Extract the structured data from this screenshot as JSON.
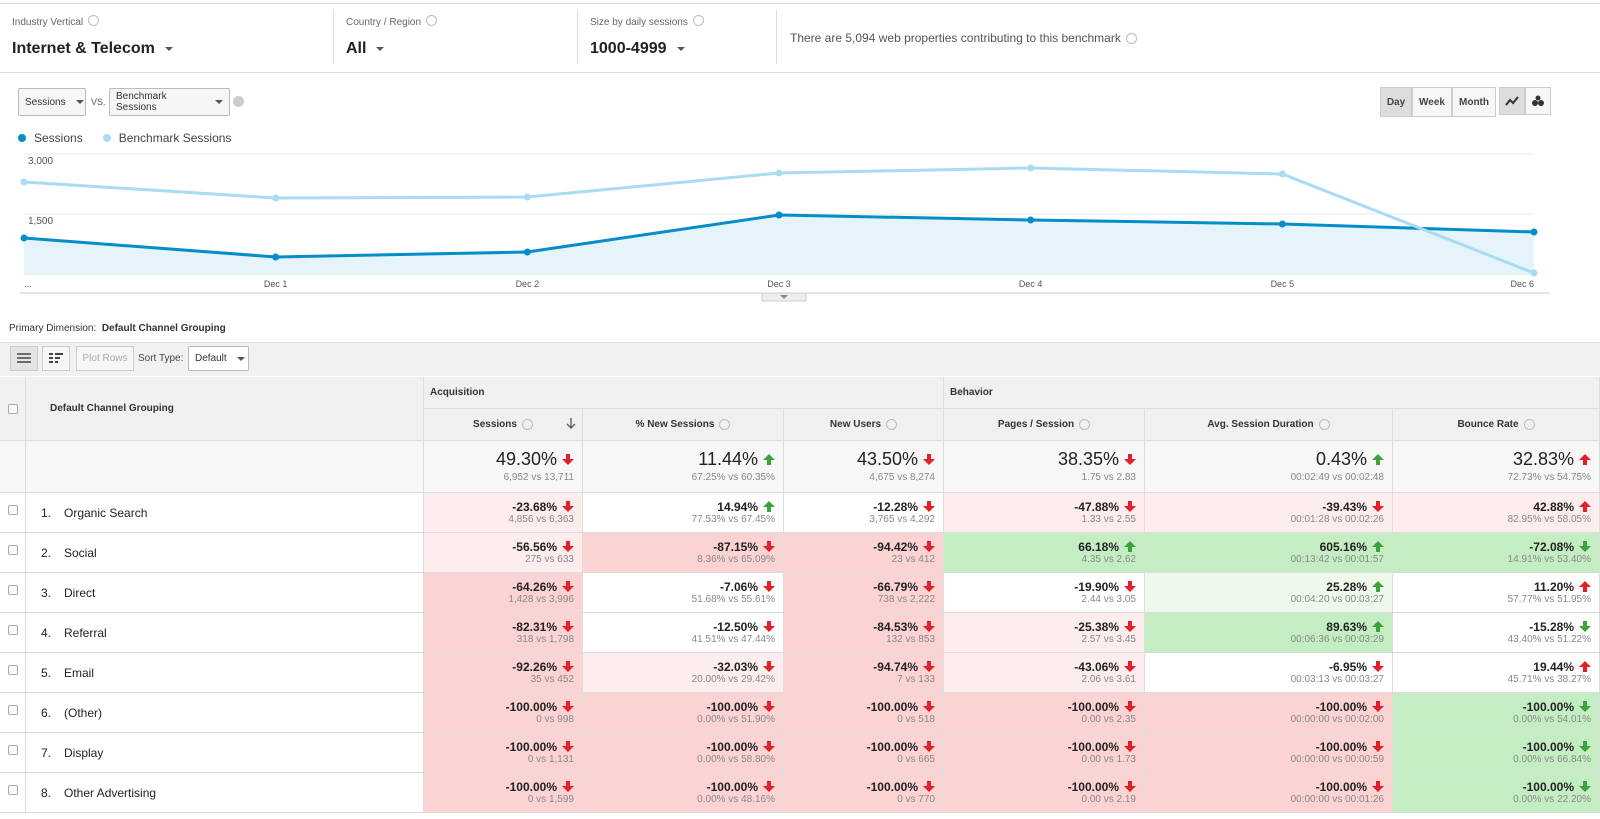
{
  "filters": [
    {
      "label": "Industry Vertical",
      "value": "Internet & Telecom"
    },
    {
      "label": "Country / Region",
      "value": "All"
    },
    {
      "label": "Size by daily sessions",
      "value": "1000-4999"
    }
  ],
  "benchmark_note": "There are 5,094 web properties contributing to this benchmark",
  "controls": {
    "metric": "Sessions",
    "vs": "VS.",
    "compare_metric": "Benchmark Sessions",
    "periods": [
      "Day",
      "Week",
      "Month"
    ],
    "active_period": "Day"
  },
  "chart_data": {
    "type": "line",
    "categories": [
      "...",
      "Dec 1",
      "Dec 2",
      "Dec 3",
      "Dec 4",
      "Dec 5",
      "Dec 6"
    ],
    "series": [
      {
        "name": "Sessions",
        "color": "#058dc7",
        "area": true,
        "values": [
          900,
          425,
          550,
          1475,
          1350,
          1250,
          1050
        ]
      },
      {
        "name": "Benchmark Sessions",
        "color": "#a9dcf2",
        "area": false,
        "values": [
          2300,
          1900,
          1925,
          2525,
          2650,
          2500,
          25
        ]
      }
    ],
    "ylim": [
      0,
      3000
    ],
    "yticks": [
      {
        "value": 1500,
        "label": "1,500"
      },
      {
        "value": 3000,
        "label": "3,000"
      }
    ],
    "grid": true
  },
  "primary_dimension": {
    "label": "Primary Dimension:",
    "value": "Default Channel Grouping"
  },
  "toolbar": {
    "plot_rows": "Plot Rows",
    "sort_label": "Sort Type:",
    "sort_value": "Default"
  },
  "table": {
    "dimension_header": "Default Channel Grouping",
    "groups": [
      {
        "name": "Acquisition",
        "columns": [
          "Sessions",
          "% New Sessions",
          "New Users"
        ]
      },
      {
        "name": "Behavior",
        "columns": [
          "Pages / Session",
          "Avg. Session Duration",
          "Bounce Rate"
        ]
      }
    ],
    "lower_is_better": [
      false,
      false,
      false,
      false,
      false,
      true
    ],
    "sorted_column": 0,
    "totals": [
      {
        "value": "49.30%",
        "compare": "6,952 vs 13,711",
        "arrow": "down"
      },
      {
        "value": "11.44%",
        "compare": "67.25% vs 60.35%",
        "arrow": "up"
      },
      {
        "value": "43.50%",
        "compare": "4,675 vs 8,274",
        "arrow": "down"
      },
      {
        "value": "38.35%",
        "compare": "1.75 vs 2.83",
        "arrow": "down"
      },
      {
        "value": "0.43%",
        "compare": "00:02:49 vs 00:02:48",
        "arrow": "up"
      },
      {
        "value": "32.83%",
        "compare": "72.73% vs 54.75%",
        "arrow": "up"
      }
    ],
    "rows": [
      {
        "index": "1.",
        "name": "Organic Search",
        "cells": [
          [
            "-23.68%",
            "4,856 vs 6,363"
          ],
          [
            "14.94%",
            "77.53% vs 67.45%"
          ],
          [
            "-12.28%",
            "3,765 vs 4,292"
          ],
          [
            "-47.88%",
            "1.33 vs 2.55"
          ],
          [
            "-39.43%",
            "00:01:28 vs 00:02:26"
          ],
          [
            "42.88%",
            "82.95% vs 58.05%"
          ]
        ]
      },
      {
        "index": "2.",
        "name": "Social",
        "cells": [
          [
            "-56.56%",
            "275 vs 633"
          ],
          [
            "-87.15%",
            "8.36% vs 65.09%"
          ],
          [
            "-94.42%",
            "23 vs 412"
          ],
          [
            "66.18%",
            "4.35 vs 2.62"
          ],
          [
            "605.16%",
            "00:13:42 vs 00:01:57"
          ],
          [
            "-72.08%",
            "14.91% vs 53.40%"
          ]
        ]
      },
      {
        "index": "3.",
        "name": "Direct",
        "cells": [
          [
            "-64.26%",
            "1,428 vs 3,996"
          ],
          [
            "-7.06%",
            "51.68% vs 55.61%"
          ],
          [
            "-66.79%",
            "738 vs 2,222"
          ],
          [
            "-19.90%",
            "2.44 vs 3.05"
          ],
          [
            "25.28%",
            "00:04:20 vs 00:03:27"
          ],
          [
            "11.20%",
            "57.77% vs 51.95%"
          ]
        ]
      },
      {
        "index": "4.",
        "name": "Referral",
        "cells": [
          [
            "-82.31%",
            "318 vs 1,798"
          ],
          [
            "-12.50%",
            "41.51% vs 47.44%"
          ],
          [
            "-84.53%",
            "132 vs 853"
          ],
          [
            "-25.38%",
            "2.57 vs 3.45"
          ],
          [
            "89.63%",
            "00:06:36 vs 00:03:29"
          ],
          [
            "-15.28%",
            "43.40% vs 51.22%"
          ]
        ]
      },
      {
        "index": "5.",
        "name": "Email",
        "cells": [
          [
            "-92.26%",
            "35 vs 452"
          ],
          [
            "-32.03%",
            "20.00% vs 29.42%"
          ],
          [
            "-94.74%",
            "7 vs 133"
          ],
          [
            "-43.06%",
            "2.06 vs 3.61"
          ],
          [
            "-6.95%",
            "00:03:13 vs 00:03:27"
          ],
          [
            "19.44%",
            "45.71% vs 38.27%"
          ]
        ]
      },
      {
        "index": "6.",
        "name": "(Other)",
        "cells": [
          [
            "-100.00%",
            "0 vs 998"
          ],
          [
            "-100.00%",
            "0.00% vs 51.90%"
          ],
          [
            "-100.00%",
            "0 vs 518"
          ],
          [
            "-100.00%",
            "0.00 vs 2.35"
          ],
          [
            "-100.00%",
            "00:00:00 vs 00:02:00"
          ],
          [
            "-100.00%",
            "0.00% vs 54.01%"
          ]
        ]
      },
      {
        "index": "7.",
        "name": "Display",
        "cells": [
          [
            "-100.00%",
            "0 vs 1,131"
          ],
          [
            "-100.00%",
            "0.00% vs 58.80%"
          ],
          [
            "-100.00%",
            "0 vs 665"
          ],
          [
            "-100.00%",
            "0.00 vs 1.73"
          ],
          [
            "-100.00%",
            "00:00:00 vs 00:00:59"
          ],
          [
            "-100.00%",
            "0.00% vs 66.84%"
          ]
        ]
      },
      {
        "index": "8.",
        "name": "Other Advertising",
        "cells": [
          [
            "-100.00%",
            "0 vs 1,599"
          ],
          [
            "-100.00%",
            "0.00% vs 48.16%"
          ],
          [
            "-100.00%",
            "0 vs 770"
          ],
          [
            "-100.00%",
            "0.00 vs 2.19"
          ],
          [
            "-100.00%",
            "00:00:00 vs 00:01:26"
          ],
          [
            "-100.00%",
            "0.00% vs 22.20%"
          ]
        ]
      }
    ]
  }
}
